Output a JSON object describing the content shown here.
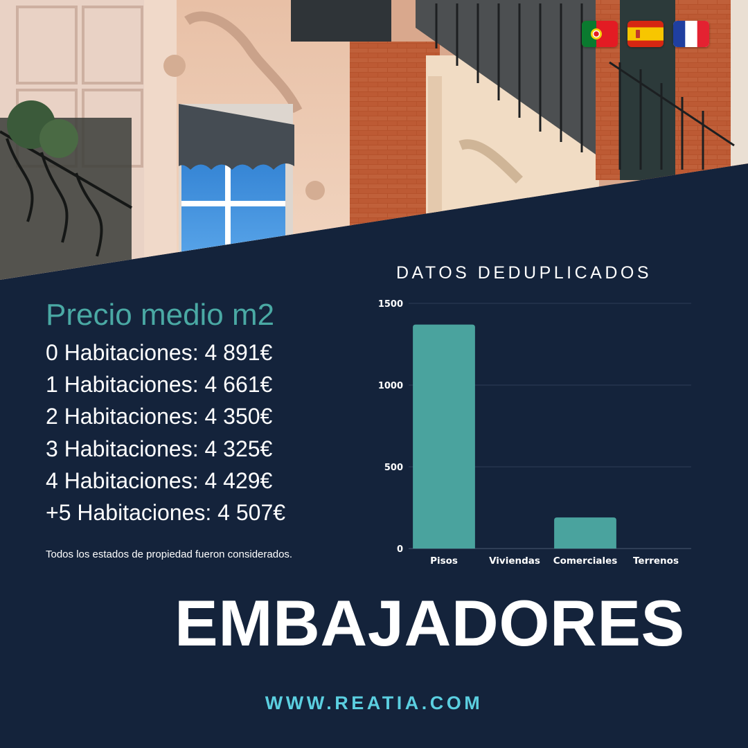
{
  "colors": {
    "background": "#14233b",
    "accent_teal": "#4aa9a4",
    "bar_color": "#4aa39e",
    "website_color": "#5bcfe0"
  },
  "flags": [
    {
      "name": "portugal-flag-icon"
    },
    {
      "name": "spain-flag-icon"
    },
    {
      "name": "france-flag-icon"
    }
  ],
  "price_section": {
    "title": "Precio medio m2",
    "rows": [
      "0 Habitaciones: 4 891€",
      "1 Habitaciones: 4 661€",
      "2 Habitaciones: 4 350€",
      "3 Habitaciones: 4 325€",
      "4 Habitaciones: 4 429€",
      "+5 Habitaciones: 4 507€"
    ],
    "note": "Todos los estados de propiedad fueron considerados."
  },
  "chart_data": {
    "type": "bar",
    "title": "DATOS DEDUPLICADOS",
    "categories": [
      "Pisos",
      "Viviendas",
      "Comerciales",
      "Terrenos"
    ],
    "values": [
      1370,
      0,
      190,
      0
    ],
    "ylim": [
      0,
      1500
    ],
    "yticks": [
      0,
      500,
      1000,
      1500
    ],
    "xlabel": "",
    "ylabel": "",
    "grid": true
  },
  "location": "EMBAJADORES",
  "website": "WWW.REATIA.COM"
}
